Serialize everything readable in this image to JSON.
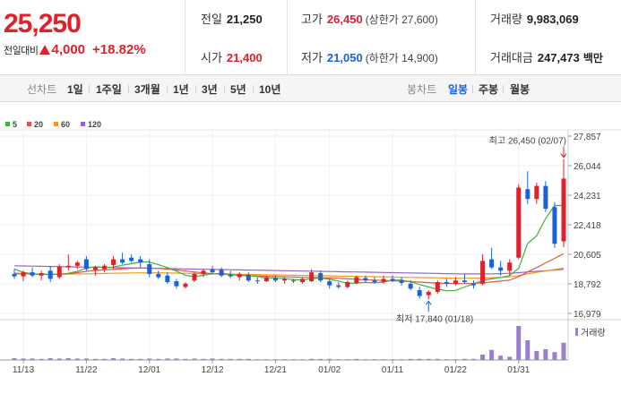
{
  "price": {
    "current": "25,250",
    "change_label": "전일대비",
    "change": "4,000",
    "change_pct": "+18.82%"
  },
  "stats": {
    "prev": {
      "label": "전일",
      "value": "21,250"
    },
    "open": {
      "label": "시가",
      "value": "21,400"
    },
    "high": {
      "label": "고가",
      "value": "26,450",
      "sub": "(상한가 27,600)"
    },
    "low": {
      "label": "저가",
      "value": "21,050",
      "sub": "(하한가 14,900)"
    },
    "volume": {
      "label": "거래량",
      "value": "9,983,069"
    },
    "amount": {
      "label": "거래대금",
      "value": "247,473",
      "unit": "백만"
    }
  },
  "tabs": {
    "line_label": "선차트",
    "periods": [
      "1일",
      "1주일",
      "3개월",
      "1년",
      "3년",
      "5년",
      "10년"
    ],
    "candle_label": "봉차트",
    "candle_periods": [
      "일봉",
      "주봉",
      "월봉"
    ],
    "active_candle": "일봉"
  },
  "colors": {
    "up": "#e0202a",
    "down": "#1a62d6",
    "ma5": "#3db23d",
    "ma20": "#e8524a",
    "ma60": "#f09a1a",
    "ma120": "#9a63c9",
    "volume": "#9b7fc9"
  },
  "chart_data": {
    "type": "candlestick",
    "legend": [
      "5",
      "20",
      "60",
      "120"
    ],
    "y_ticks": [
      "27,857",
      "26,044",
      "24,231",
      "22,418",
      "20,605",
      "18,792",
      "16,979"
    ],
    "ylim": [
      16979,
      27857
    ],
    "x_ticks": [
      {
        "label": "11/13",
        "i": 1
      },
      {
        "label": "11/22",
        "i": 8
      },
      {
        "label": "12/01",
        "i": 15
      },
      {
        "label": "12/12",
        "i": 22
      },
      {
        "label": "12/21",
        "i": 29
      },
      {
        "label": "01/02",
        "i": 35
      },
      {
        "label": "01/11",
        "i": 42
      },
      {
        "label": "01/22",
        "i": 49
      },
      {
        "label": "01/31",
        "i": 56
      }
    ],
    "annotations": {
      "high": "최고 26,450 (02/07)",
      "low": "최저 17,840 (01/18)"
    },
    "volume_label": "거래량",
    "candles": [
      {
        "o": 19400,
        "h": 19700,
        "l": 19100,
        "c": 19250,
        "v": 0.05
      },
      {
        "o": 19250,
        "h": 19600,
        "l": 18950,
        "c": 19500,
        "v": 0.04
      },
      {
        "o": 19500,
        "h": 19800,
        "l": 19200,
        "c": 19300,
        "v": 0.04
      },
      {
        "o": 19300,
        "h": 19600,
        "l": 19000,
        "c": 19450,
        "v": 0.03
      },
      {
        "o": 19600,
        "h": 19900,
        "l": 18900,
        "c": 19100,
        "v": 0.05
      },
      {
        "o": 19200,
        "h": 20000,
        "l": 19100,
        "c": 19850,
        "v": 0.04
      },
      {
        "o": 19800,
        "h": 20600,
        "l": 19600,
        "c": 19900,
        "v": 0.05
      },
      {
        "o": 19900,
        "h": 20200,
        "l": 19700,
        "c": 20100,
        "v": 0.04
      },
      {
        "o": 20300,
        "h": 20500,
        "l": 19600,
        "c": 19700,
        "v": 0.04
      },
      {
        "o": 19650,
        "h": 19900,
        "l": 19300,
        "c": 19800,
        "v": 0.03
      },
      {
        "o": 19700,
        "h": 20000,
        "l": 19500,
        "c": 19900,
        "v": 0.03
      },
      {
        "o": 19950,
        "h": 20500,
        "l": 19700,
        "c": 20300,
        "v": 0.05
      },
      {
        "o": 20300,
        "h": 20700,
        "l": 20000,
        "c": 20100,
        "v": 0.04
      },
      {
        "o": 20400,
        "h": 20600,
        "l": 20100,
        "c": 20200,
        "v": 0.03
      },
      {
        "o": 20300,
        "h": 20500,
        "l": 19800,
        "c": 20100,
        "v": 0.03
      },
      {
        "o": 20000,
        "h": 20300,
        "l": 19200,
        "c": 19400,
        "v": 0.04
      },
      {
        "o": 19400,
        "h": 19600,
        "l": 19100,
        "c": 19200,
        "v": 0.03
      },
      {
        "o": 19300,
        "h": 19500,
        "l": 18800,
        "c": 18900,
        "v": 0.04
      },
      {
        "o": 18950,
        "h": 19100,
        "l": 18500,
        "c": 18650,
        "v": 0.04
      },
      {
        "o": 18600,
        "h": 18900,
        "l": 18500,
        "c": 18800,
        "v": 0.03
      },
      {
        "o": 19000,
        "h": 19500,
        "l": 18900,
        "c": 19400,
        "v": 0.04
      },
      {
        "o": 19400,
        "h": 19700,
        "l": 19200,
        "c": 19600,
        "v": 0.03
      },
      {
        "o": 19700,
        "h": 19900,
        "l": 19400,
        "c": 19500,
        "v": 0.04
      },
      {
        "o": 19650,
        "h": 19800,
        "l": 19200,
        "c": 19300,
        "v": 0.03
      },
      {
        "o": 19350,
        "h": 19600,
        "l": 19150,
        "c": 19250,
        "v": 0.03
      },
      {
        "o": 19200,
        "h": 19500,
        "l": 19000,
        "c": 19400,
        "v": 0.03
      },
      {
        "o": 19350,
        "h": 19500,
        "l": 18900,
        "c": 19000,
        "v": 0.03
      },
      {
        "o": 19000,
        "h": 19200,
        "l": 18800,
        "c": 18950,
        "v": 0.02
      },
      {
        "o": 18950,
        "h": 19300,
        "l": 18900,
        "c": 19200,
        "v": 0.02
      },
      {
        "o": 19150,
        "h": 19300,
        "l": 18900,
        "c": 19000,
        "v": 0.02
      },
      {
        "o": 19000,
        "h": 19200,
        "l": 18800,
        "c": 19100,
        "v": 0.02
      },
      {
        "o": 19000,
        "h": 19100,
        "l": 18850,
        "c": 18950,
        "v": 0.02
      },
      {
        "o": 18900,
        "h": 19200,
        "l": 18800,
        "c": 19100,
        "v": 0.02
      },
      {
        "o": 18950,
        "h": 19700,
        "l": 18900,
        "c": 19500,
        "v": 0.03
      },
      {
        "o": 19450,
        "h": 19600,
        "l": 18900,
        "c": 19000,
        "v": 0.03
      },
      {
        "o": 18950,
        "h": 19100,
        "l": 18500,
        "c": 18700,
        "v": 0.03
      },
      {
        "o": 18700,
        "h": 18900,
        "l": 18500,
        "c": 18600,
        "v": 0.02
      },
      {
        "o": 18600,
        "h": 19000,
        "l": 18500,
        "c": 18900,
        "v": 0.02
      },
      {
        "o": 18850,
        "h": 19300,
        "l": 18750,
        "c": 19200,
        "v": 0.03
      },
      {
        "o": 19150,
        "h": 19300,
        "l": 18900,
        "c": 19000,
        "v": 0.02
      },
      {
        "o": 19000,
        "h": 19200,
        "l": 18800,
        "c": 18900,
        "v": 0.02
      },
      {
        "o": 18900,
        "h": 19300,
        "l": 18800,
        "c": 19100,
        "v": 0.02
      },
      {
        "o": 19100,
        "h": 19300,
        "l": 18900,
        "c": 19000,
        "v": 0.02
      },
      {
        "o": 19000,
        "h": 19200,
        "l": 18700,
        "c": 18850,
        "v": 0.02
      },
      {
        "o": 18800,
        "h": 19000,
        "l": 18400,
        "c": 18500,
        "v": 0.03
      },
      {
        "o": 18400,
        "h": 18600,
        "l": 17900,
        "c": 18050,
        "v": 0.03
      },
      {
        "o": 18100,
        "h": 18400,
        "l": 17840,
        "c": 18300,
        "v": 0.03
      },
      {
        "o": 18300,
        "h": 19000,
        "l": 18200,
        "c": 18900,
        "v": 0.03
      },
      {
        "o": 18900,
        "h": 19100,
        "l": 18600,
        "c": 18800,
        "v": 0.02
      },
      {
        "o": 18800,
        "h": 19200,
        "l": 18700,
        "c": 19000,
        "v": 0.02
      },
      {
        "o": 19000,
        "h": 19400,
        "l": 18800,
        "c": 18900,
        "v": 0.03
      },
      {
        "o": 18800,
        "h": 19000,
        "l": 18500,
        "c": 18700,
        "v": 0.03
      },
      {
        "o": 18800,
        "h": 20600,
        "l": 18700,
        "c": 20200,
        "v": 0.15
      },
      {
        "o": 20300,
        "h": 21000,
        "l": 19700,
        "c": 19800,
        "v": 0.28
      },
      {
        "o": 19800,
        "h": 20200,
        "l": 19300,
        "c": 19600,
        "v": 0.12
      },
      {
        "o": 19600,
        "h": 20300,
        "l": 19300,
        "c": 20100,
        "v": 0.09
      },
      {
        "o": 20400,
        "h": 24900,
        "l": 20300,
        "c": 24700,
        "v": 0.95
      },
      {
        "o": 24600,
        "h": 25700,
        "l": 23700,
        "c": 24000,
        "v": 0.55
      },
      {
        "o": 24000,
        "h": 25000,
        "l": 23700,
        "c": 24800,
        "v": 0.25
      },
      {
        "o": 24800,
        "h": 25100,
        "l": 23200,
        "c": 23400,
        "v": 0.3
      },
      {
        "o": 23500,
        "h": 23800,
        "l": 21000,
        "c": 21250,
        "v": 0.22
      },
      {
        "o": 21400,
        "h": 26450,
        "l": 21050,
        "c": 25250,
        "v": 0.48
      }
    ],
    "ma": {
      "ma5": [
        19700,
        19500,
        19400,
        19380,
        19360,
        19380,
        19440,
        19560,
        19760,
        19840,
        19800,
        19820,
        19940,
        20030,
        20140,
        20140,
        19970,
        19790,
        19570,
        19320,
        19230,
        19320,
        19410,
        19430,
        19370,
        19310,
        19300,
        19250,
        19150,
        19150,
        19110,
        19060,
        19020,
        19110,
        19150,
        19070,
        18970,
        18820,
        18840,
        18880,
        18860,
        18900,
        19020,
        19030,
        18920,
        18750,
        18600,
        18470,
        18370,
        18390,
        18600,
        18800,
        19000,
        19100,
        19180,
        19300,
        19740,
        21270,
        21750,
        22800,
        23600,
        23600
      ],
      "ma20": [
        19450,
        19420,
        19400,
        19380,
        19370,
        19380,
        19420,
        19480,
        19560,
        19620,
        19650,
        19680,
        19720,
        19750,
        19760,
        19760,
        19740,
        19700,
        19650,
        19580,
        19520,
        19470,
        19420,
        19390,
        19350,
        19320,
        19300,
        19280,
        19260,
        19250,
        19230,
        19210,
        19190,
        19180,
        19170,
        19150,
        19130,
        19100,
        19070,
        19040,
        19020,
        19000,
        18980,
        18960,
        18930,
        18900,
        18870,
        18840,
        18820,
        18810,
        18810,
        18820,
        18860,
        18910,
        18960,
        19020,
        19230,
        19520,
        19790,
        20080,
        20360,
        20650
      ],
      "ma60": [
        19400,
        19400,
        19400,
        19390,
        19390,
        19390,
        19390,
        19400,
        19410,
        19420,
        19430,
        19440,
        19450,
        19460,
        19470,
        19470,
        19470,
        19460,
        19450,
        19440,
        19430,
        19420,
        19410,
        19400,
        19390,
        19380,
        19370,
        19360,
        19350,
        19340,
        19330,
        19320,
        19310,
        19300,
        19290,
        19280,
        19270,
        19260,
        19250,
        19240,
        19230,
        19220,
        19210,
        19200,
        19190,
        19180,
        19170,
        19160,
        19150,
        19140,
        19140,
        19140,
        19150,
        19170,
        19190,
        19220,
        19300,
        19400,
        19500,
        19590,
        19670,
        19760
      ],
      "ma120": [
        19900,
        19890,
        19880,
        19870,
        19860,
        19850,
        19840,
        19830,
        19820,
        19810,
        19800,
        19790,
        19780,
        19770,
        19760,
        19750,
        19740,
        19730,
        19720,
        19710,
        19700,
        19690,
        19680,
        19670,
        19660,
        19650,
        19640,
        19630,
        19620,
        19610,
        19600,
        19590,
        19580,
        19570,
        19560,
        19550,
        19540,
        19530,
        19520,
        19510,
        19500,
        19490,
        19480,
        19470,
        19460,
        19450,
        19440,
        19430,
        19420,
        19410,
        19400,
        19400,
        19400,
        19410,
        19420,
        19440,
        19480,
        19520,
        19560,
        19600,
        19640,
        19680
      ]
    }
  }
}
